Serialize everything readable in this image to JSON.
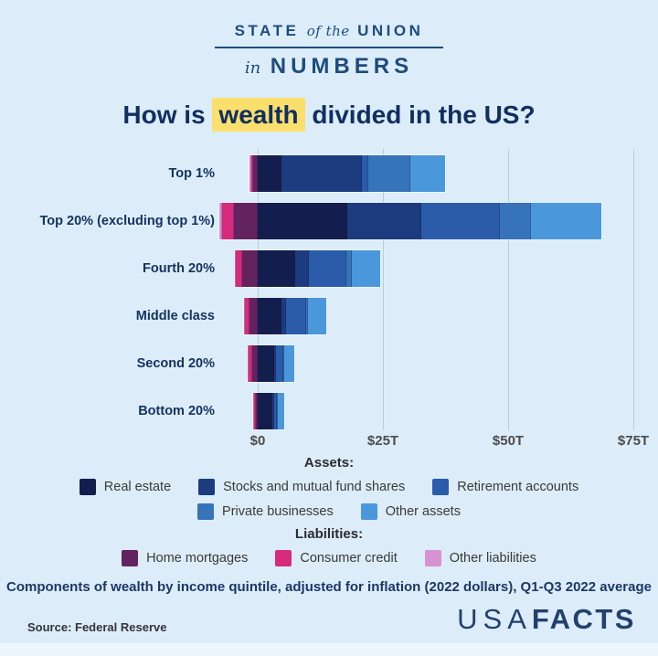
{
  "header": {
    "line1_left": "STATE",
    "line1_mid": "of the",
    "line1_right": "UNION",
    "line2_left": "in",
    "line2_right": "NUMBERS"
  },
  "title": {
    "prefix": "How is ",
    "highlight": "wealth",
    "suffix": " divided in the US?"
  },
  "chart_data": {
    "type": "bar",
    "orientation": "horizontal",
    "stacked": true,
    "title": "How is wealth divided in the US?",
    "unit": "trillions of 2022 dollars",
    "x_axis": {
      "ticks": [
        {
          "value": 0,
          "label": "$0"
        },
        {
          "value": 25,
          "label": "$25T"
        },
        {
          "value": 50,
          "label": "$50T"
        },
        {
          "value": 75,
          "label": "$75T"
        }
      ],
      "range_trillions": [
        -8,
        76
      ],
      "grid": true
    },
    "categories": [
      "Top 1%",
      "Top 20% (excluding top 1%)",
      "Fourth 20%",
      "Middle class",
      "Second 20%",
      "Bottom 20%"
    ],
    "asset_order": [
      "real_estate",
      "stocks",
      "retirement_accounts",
      "private_businesses",
      "other_assets"
    ],
    "liability_order_from_zero": [
      "home_mortgages",
      "consumer_credit",
      "other_liabilities"
    ],
    "rows": [
      {
        "label": "Top 1%",
        "assets": {
          "real_estate": 4.8,
          "stocks": 16.0,
          "retirement_accounts": 1.2,
          "private_businesses": 8.5,
          "other_assets": 7.0
        },
        "liabilities": {
          "home_mortgages": 0.9,
          "consumer_credit": 0.4,
          "other_liabilities": 0.3
        }
      },
      {
        "label": "Top 20% (excluding top 1%)",
        "assets": {
          "real_estate": 17.8,
          "stocks": 14.9,
          "retirement_accounts": 15.6,
          "private_businesses": 6.2,
          "other_assets": 14.2
        },
        "liabilities": {
          "home_mortgages": 4.7,
          "consumer_credit": 2.4,
          "other_liabilities": 0.5
        }
      },
      {
        "label": "Fourth 20%",
        "assets": {
          "real_estate": 7.5,
          "stocks": 2.7,
          "retirement_accounts": 7.6,
          "private_businesses": 1.0,
          "other_assets": 5.6
        },
        "liabilities": {
          "home_mortgages": 3.1,
          "consumer_credit": 1.2,
          "other_liabilities": 0.2
        }
      },
      {
        "label": "Middle class",
        "assets": {
          "real_estate": 4.7,
          "stocks": 0.9,
          "retirement_accounts": 4.1,
          "private_businesses": 0.4,
          "other_assets": 3.6
        },
        "liabilities": {
          "home_mortgages": 1.6,
          "consumer_credit": 0.9,
          "other_liabilities": 0.2
        }
      },
      {
        "label": "Second 20%",
        "assets": {
          "real_estate": 3.2,
          "stocks": 0.4,
          "retirement_accounts": 1.5,
          "private_businesses": 0.2,
          "other_assets": 2.0
        },
        "liabilities": {
          "home_mortgages": 1.1,
          "consumer_credit": 0.8,
          "other_liabilities": 0.1
        }
      },
      {
        "label": "Bottom 20%",
        "assets": {
          "real_estate": 2.9,
          "stocks": 0.3,
          "retirement_accounts": 0.5,
          "private_businesses": 0.1,
          "other_assets": 1.3
        },
        "liabilities": {
          "home_mortgages": 0.5,
          "consumer_credit": 0.4,
          "other_liabilities": 0.1
        }
      }
    ],
    "legend_position": "bottom"
  },
  "legend": {
    "assets_title": "Assets:",
    "assets_rows": [
      [
        {
          "key": "real_estate",
          "label": "Real estate"
        },
        {
          "key": "stocks",
          "label": "Stocks and mutual fund shares"
        },
        {
          "key": "retirement_accounts",
          "label": "Retirement accounts"
        }
      ],
      [
        {
          "key": "private_businesses",
          "label": "Private businesses"
        },
        {
          "key": "other_assets",
          "label": "Other assets"
        }
      ]
    ],
    "liabilities_title": "Liabilities:",
    "liabilities_rows": [
      [
        {
          "key": "home_mortgages",
          "label": "Home mortgages"
        },
        {
          "key": "consumer_credit",
          "label": "Consumer credit"
        },
        {
          "key": "other_liabilities",
          "label": "Other liabilities"
        }
      ]
    ]
  },
  "colors": {
    "background": "#dcedf9",
    "header_blue": "#1e4b7d",
    "title_navy": "#112f61",
    "highlight_yellow": "#fbdf6d",
    "gridline": "#b7cedd",
    "real_estate": "#141e4e",
    "stocks": "#1d3c80",
    "retirement_accounts": "#2a5caa",
    "private_businesses": "#3673b9",
    "other_assets": "#4b97dc",
    "home_mortgages": "#63235f",
    "consumer_credit": "#d62b7d",
    "other_liabilities": "#d693cf"
  },
  "footer": {
    "note": "Components of wealth by income quintile, adjusted for inflation (2022 dollars), Q1-Q3 2022 average",
    "source": "Source: Federal Reserve",
    "logo_usa": "USA",
    "logo_facts": "FACTS"
  }
}
